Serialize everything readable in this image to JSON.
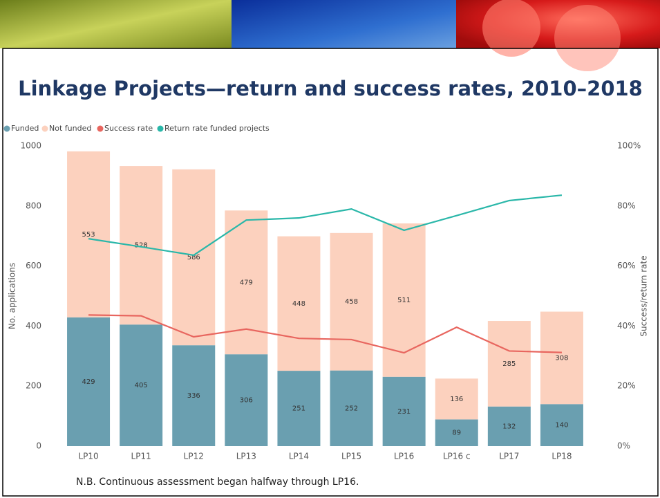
{
  "chart_data": {
    "type": "bar",
    "stacked": true,
    "title": "Linkage Projects—return and success rates, 2010–2018",
    "categories": [
      "LP10",
      "LP11",
      "LP12",
      "LP13",
      "LP14",
      "LP15",
      "LP16",
      "LP16 c",
      "LP17",
      "LP18"
    ],
    "series": [
      {
        "name": "Funded",
        "color": "#6a9fb0",
        "data_labels": true,
        "values": [
          429,
          405,
          336,
          306,
          251,
          252,
          231,
          89,
          132,
          140
        ]
      },
      {
        "name": "Not funded",
        "color": "#fcd1be",
        "data_labels": true,
        "values": [
          553,
          528,
          586,
          479,
          448,
          458,
          511,
          136,
          285,
          308
        ]
      },
      {
        "name": "Success rate",
        "type": "line",
        "axis": "y2",
        "color": "#e8665f",
        "values": [
          43.7,
          43.4,
          36.4,
          39.0,
          35.9,
          35.5,
          31.1,
          39.6,
          31.7,
          31.2
        ]
      },
      {
        "name": "Return rate funded projects",
        "type": "line",
        "axis": "y2",
        "color": "#2ab7a9",
        "values": [
          69.1,
          66.4,
          63.6,
          75.3,
          76.0,
          79.0,
          71.9,
          76.8,
          81.8,
          83.6
        ]
      }
    ],
    "ylabel": "No. applications",
    "y2label": "Success/return rate",
    "ylim": [
      0,
      1000
    ],
    "yticks": [
      0,
      200,
      400,
      600,
      800,
      1000
    ],
    "y2lim": [
      0,
      100
    ],
    "y2ticks": [
      {
        "value": 0,
        "label": "0%"
      },
      {
        "value": 20,
        "label": "20%"
      },
      {
        "value": 40,
        "label": "40%"
      },
      {
        "value": 60,
        "label": "60%"
      },
      {
        "value": 80,
        "label": "80%"
      },
      {
        "value": 100,
        "label": "100%"
      }
    ],
    "legend": "top-left",
    "grid": false,
    "note": "N.B. Continuous assessment began halfway through LP16."
  }
}
